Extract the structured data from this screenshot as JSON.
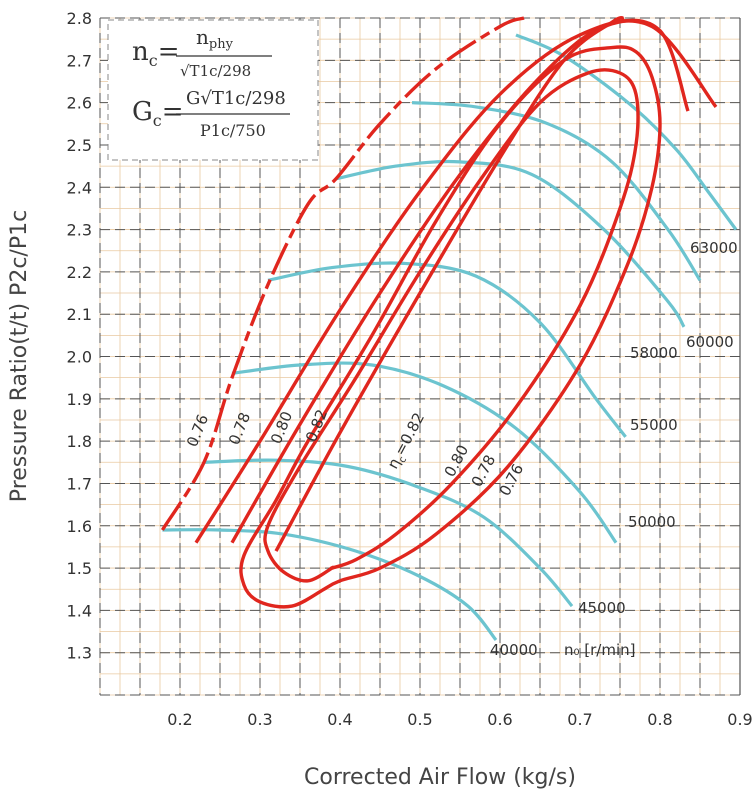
{
  "chart_data": {
    "type": "line",
    "xlabel": "Corrected Air Flow (kg/s)",
    "ylabel": "Pressure Ratio(t/t) P2c/P1c",
    "xlim": [
      0.1,
      0.9
    ],
    "ylim": [
      1.2,
      2.8
    ],
    "xticks": [
      "0.2",
      "0.3",
      "0.4",
      "0.5",
      "0.6",
      "0.7",
      "0.8",
      "0.9"
    ],
    "yticks": [
      "1.3",
      "1.4",
      "1.5",
      "1.6",
      "1.7",
      "1.8",
      "1.9",
      "2.0",
      "2.1",
      "2.2",
      "2.3",
      "2.4",
      "2.5",
      "2.6",
      "2.7",
      "2.8"
    ],
    "grid": true,
    "formula": {
      "nc_left": "n",
      "nc_sub": "c",
      "nc_num": "n",
      "nc_num_sub": "phy",
      "nc_den": "√T1c/298",
      "gc_left": "G",
      "gc_sub": "c",
      "gc_num": "G√T1c/298",
      "gc_den": "P1c/750"
    },
    "surge_line": {
      "x": [
        0.178,
        0.23,
        0.265,
        0.31,
        0.36,
        0.395,
        0.45,
        0.52,
        0.6,
        0.63
      ],
      "y": [
        1.59,
        1.75,
        1.95,
        2.17,
        2.36,
        2.42,
        2.55,
        2.68,
        2.78,
        2.8
      ]
    },
    "speed_lines": [
      {
        "name": "40000",
        "x": [
          0.178,
          0.25,
          0.33,
          0.42,
          0.5,
          0.56,
          0.595
        ],
        "y": [
          1.59,
          1.59,
          1.58,
          1.54,
          1.48,
          1.41,
          1.33
        ]
      },
      {
        "name": "45000",
        "x": [
          0.23,
          0.32,
          0.41,
          0.5,
          0.58,
          0.65,
          0.69
        ],
        "y": [
          1.75,
          1.755,
          1.74,
          1.69,
          1.62,
          1.5,
          1.41
        ]
      },
      {
        "name": "50000",
        "x": [
          0.265,
          0.35,
          0.44,
          0.53,
          0.62,
          0.7,
          0.745
        ],
        "y": [
          1.96,
          1.98,
          1.98,
          1.93,
          1.83,
          1.68,
          1.56
        ]
      },
      {
        "name": "55000",
        "x": [
          0.31,
          0.39,
          0.48,
          0.57,
          0.65,
          0.72,
          0.757
        ],
        "y": [
          2.18,
          2.21,
          2.22,
          2.19,
          2.08,
          1.9,
          1.81
        ]
      },
      {
        "name": "58000",
        "x": [
          0.395,
          0.47,
          0.55,
          0.64,
          0.73,
          0.81,
          0.83
        ],
        "y": [
          2.42,
          2.45,
          2.46,
          2.43,
          2.3,
          2.13,
          2.07
        ]
      },
      {
        "name": "60000",
        "x": [
          0.49,
          0.57,
          0.66,
          0.74,
          0.81,
          0.85
        ],
        "y": [
          2.6,
          2.59,
          2.55,
          2.46,
          2.3,
          2.18
        ]
      },
      {
        "name": "63000",
        "x": [
          0.62,
          0.68,
          0.76,
          0.82,
          0.86,
          0.895
        ],
        "y": [
          2.76,
          2.71,
          2.6,
          2.49,
          2.39,
          2.3
        ]
      }
    ],
    "efficiency_contours": [
      {
        "name": "0.76",
        "label": "0.76",
        "x": [
          0.22,
          0.3,
          0.4,
          0.5,
          0.6,
          0.7,
          0.79,
          0.87
        ],
        "y": [
          1.56,
          1.8,
          2.11,
          2.39,
          2.62,
          2.76,
          2.78,
          2.59
        ]
      },
      {
        "name": "0.78",
        "label": "0.78",
        "x": [
          0.265,
          0.35,
          0.45,
          0.55,
          0.65,
          0.73,
          0.8,
          0.835
        ],
        "y": [
          1.56,
          1.84,
          2.15,
          2.43,
          2.66,
          2.78,
          2.77,
          2.58
        ]
      },
      {
        "name": "0.80",
        "label": "0.80",
        "x": [
          0.32,
          0.4,
          0.5,
          0.6,
          0.68,
          0.74,
          0.755
        ],
        "y": [
          1.54,
          1.82,
          2.15,
          2.47,
          2.7,
          2.79,
          2.8
        ]
      }
    ],
    "closed_contours": [
      {
        "name": "0.82",
        "label": "0.82",
        "x": [
          0.38,
          0.34,
          0.3,
          0.28,
          0.28,
          0.32,
          0.36,
          0.44,
          0.52,
          0.6,
          0.68,
          0.74,
          0.77,
          0.79,
          0.8,
          0.79,
          0.76,
          0.7,
          0.61,
          0.52,
          0.45,
          0.4,
          0.38
        ],
        "y": [
          1.45,
          1.41,
          1.42,
          1.46,
          1.53,
          1.66,
          1.8,
          2.05,
          2.32,
          2.55,
          2.7,
          2.73,
          2.72,
          2.66,
          2.55,
          2.4,
          2.22,
          1.98,
          1.74,
          1.58,
          1.5,
          1.47,
          1.45
        ]
      },
      {
        "name": "0.82 inner",
        "label": "0.82",
        "x": [
          0.39,
          0.36,
          0.33,
          0.31,
          0.31,
          0.35,
          0.42,
          0.5,
          0.58,
          0.65,
          0.71,
          0.75,
          0.77,
          0.77,
          0.75,
          0.7,
          0.62,
          0.54,
          0.47,
          0.42,
          0.39
        ],
        "y": [
          1.5,
          1.47,
          1.49,
          1.54,
          1.6,
          1.74,
          1.95,
          2.2,
          2.43,
          2.6,
          2.67,
          2.67,
          2.62,
          2.5,
          2.35,
          2.12,
          1.88,
          1.7,
          1.58,
          1.52,
          1.5
        ]
      }
    ],
    "inner_labels": {
      "eta": "η",
      "eta_sub": "c",
      "eta_eq": "=0.82",
      "right_080": "0.80",
      "right_078": "0.78",
      "right_076": "0.76"
    },
    "speed_axis_label": "n₀ [r/min]",
    "colors": {
      "efficiency": "#e0261e",
      "speed": "#6cc4cf",
      "grid_major": "#555555",
      "grid_minor": "#e9c9a0"
    }
  }
}
